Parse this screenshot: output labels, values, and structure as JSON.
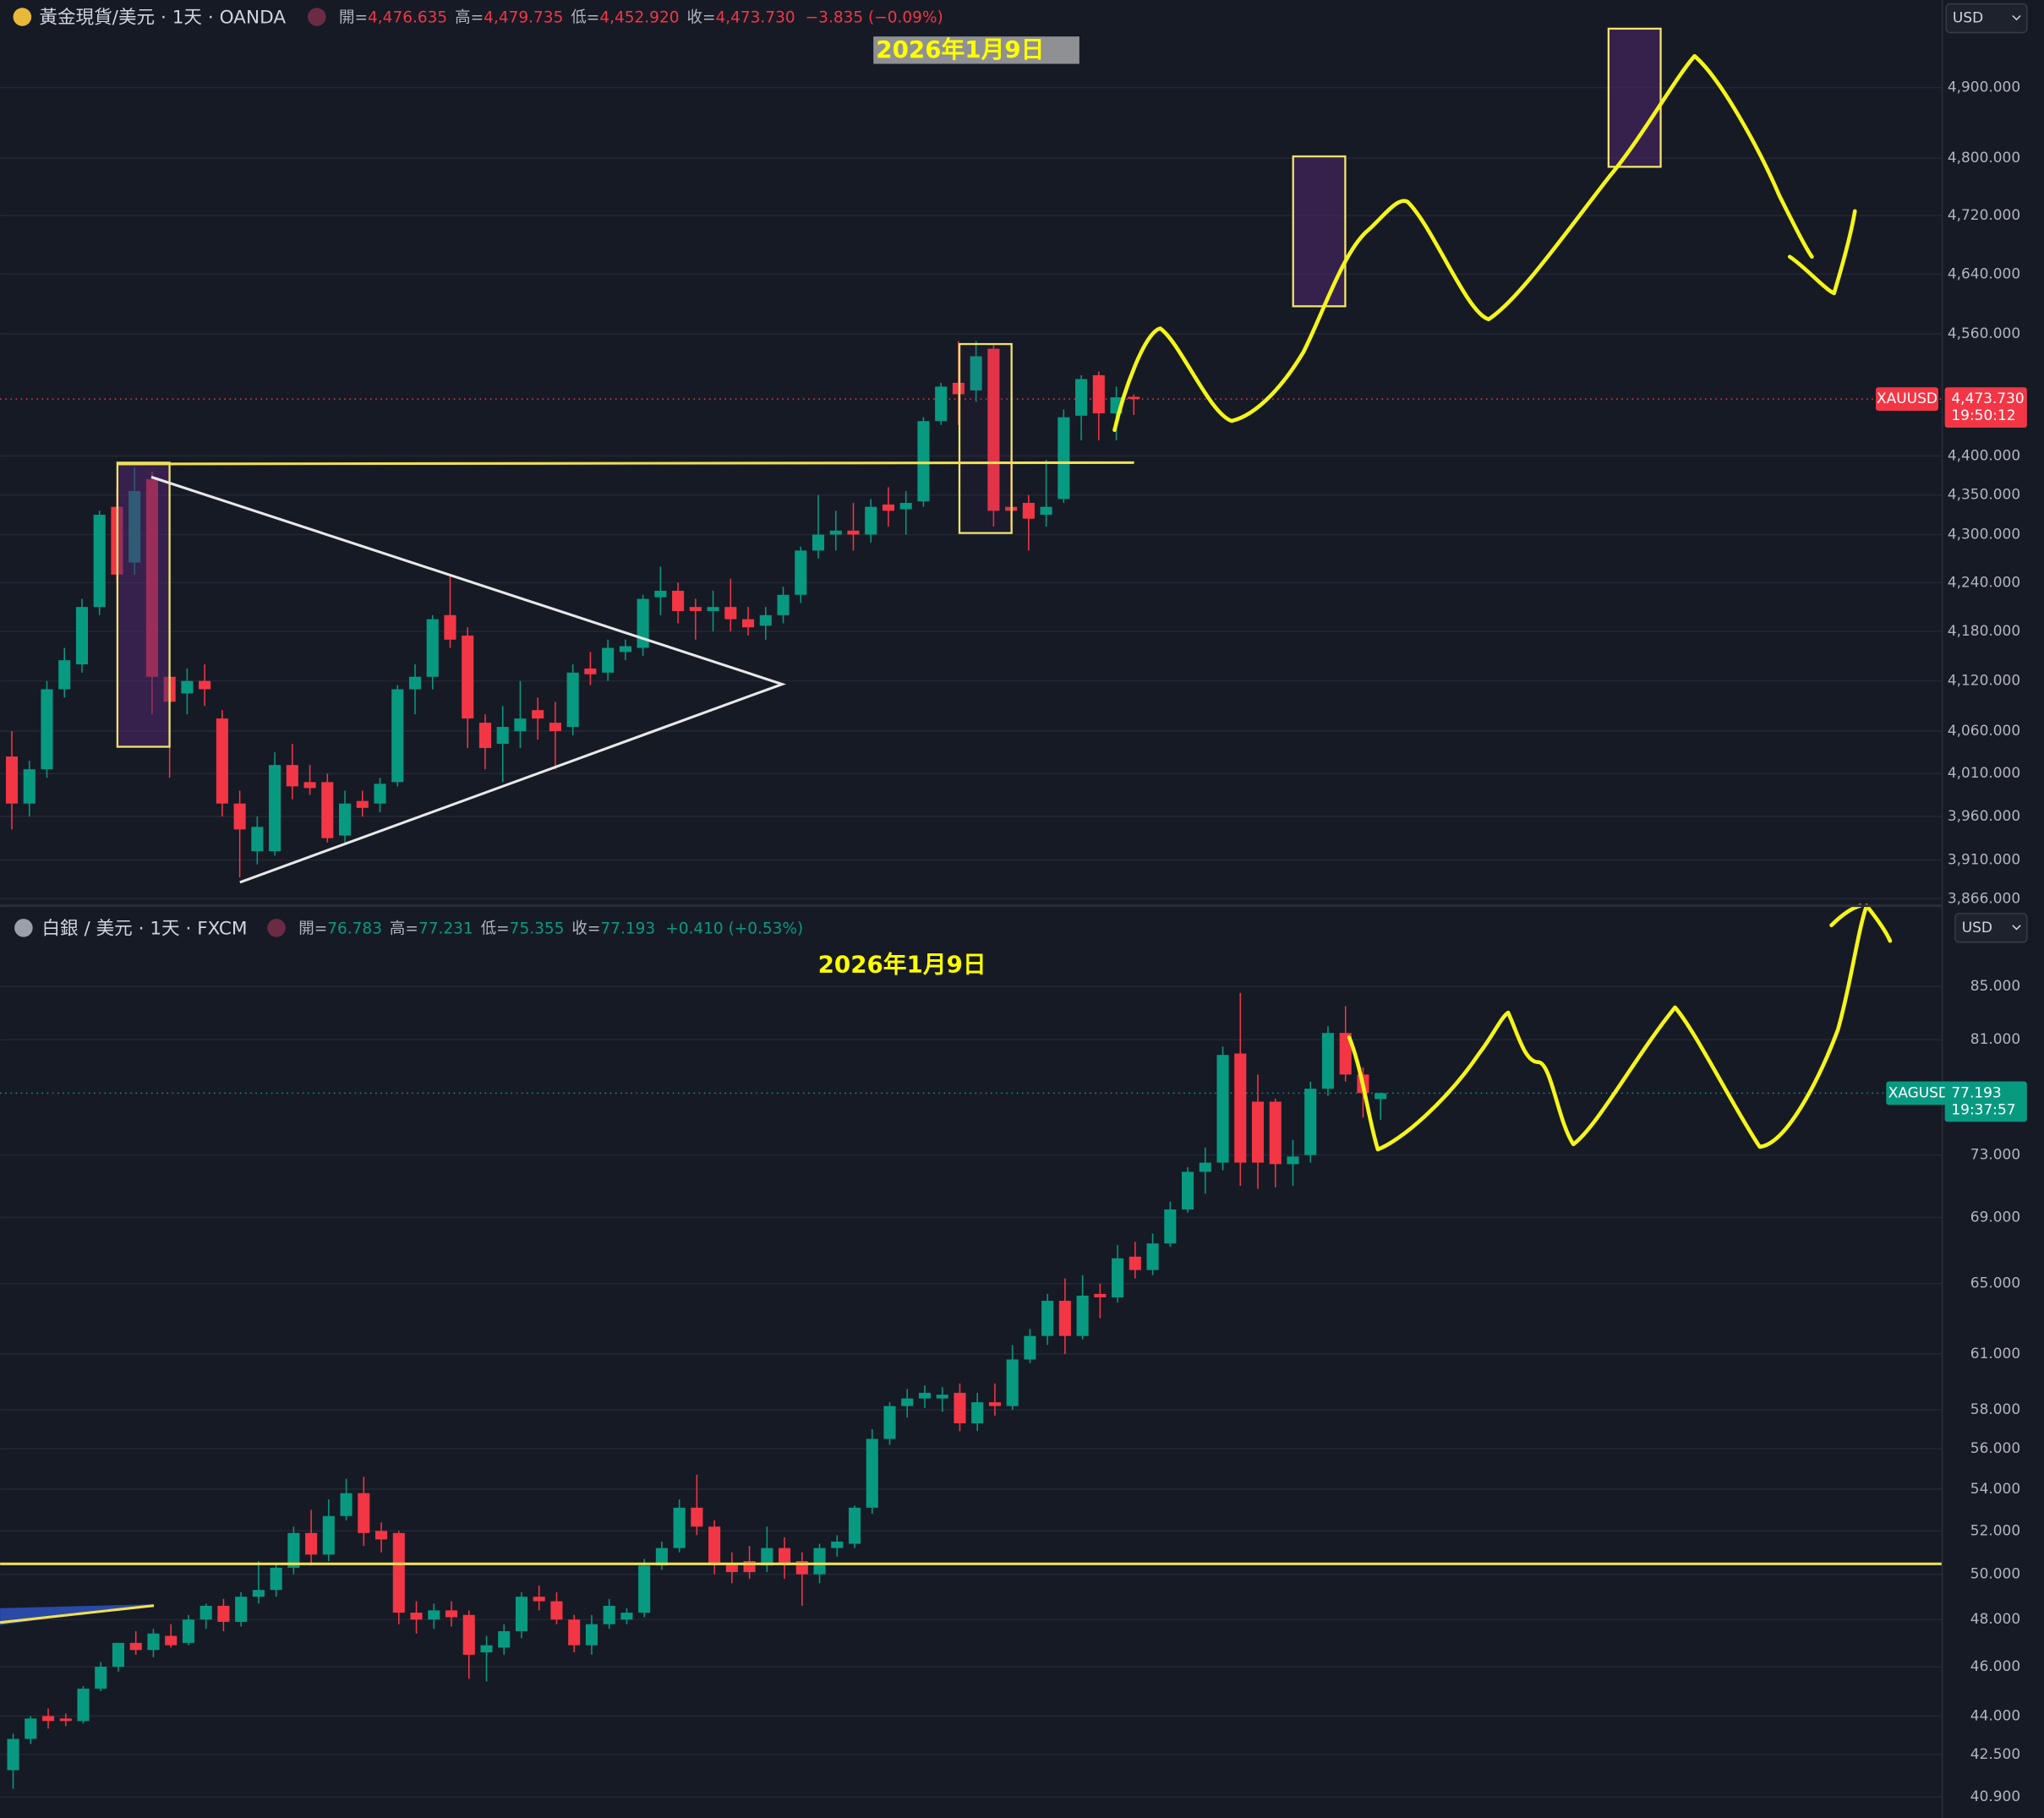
{
  "chart_data": [
    {
      "type": "candlestick",
      "symbol": "黃金現貨/美元 · 1天 · OANDA",
      "ohlc_text": [
        {
          "label": "開=",
          "value": "4,476.635"
        },
        {
          "label": "高=",
          "value": "4,479.735"
        },
        {
          "label": "低=",
          "value": "4,452.920"
        },
        {
          "label": "收=",
          "value": "4,473.730"
        }
      ],
      "change_text": "−3.835 (−0.09%)",
      "annotation": "2026年1月9日",
      "currency": "USD",
      "ticker": "XAUUSD",
      "last_label": "4,473.730",
      "countdown": "19:50:12",
      "log": true,
      "grid": true,
      "up_color": "#089981",
      "down_color": "#f23645",
      "ylim": [
        3861,
        5027
      ],
      "yticks": [
        {
          "value": 4900,
          "label": "4,900.000"
        },
        {
          "value": 4800,
          "label": "4,800.000"
        },
        {
          "value": 4720,
          "label": "4,720.000"
        },
        {
          "value": 4640,
          "label": "4,640.000"
        },
        {
          "value": 4560,
          "label": "4,560.000"
        },
        {
          "value": 4400,
          "label": "4,400.000"
        },
        {
          "value": 4350,
          "label": "4,350.000"
        },
        {
          "value": 4300,
          "label": "4,300.000"
        },
        {
          "value": 4240,
          "label": "4,240.000"
        },
        {
          "value": 4180,
          "label": "4,180.000"
        },
        {
          "value": 4120,
          "label": "4,120.000"
        },
        {
          "value": 4060,
          "label": "4,060.000"
        },
        {
          "value": 4010,
          "label": "4,010.000"
        },
        {
          "value": 3960,
          "label": "3,960.000"
        },
        {
          "value": 3910,
          "label": "3,910.000"
        },
        {
          "value": 3866,
          "label": "3,866.000"
        }
      ],
      "open": [
        4030,
        3975,
        4015,
        4110,
        4140,
        4210,
        4335,
        4265,
        4370,
        4125,
        4105,
        4120,
        4075,
        3975,
        3920,
        3920,
        4020,
        4000,
        4000,
        3938,
        3978,
        3975,
        4000,
        4110,
        4125,
        4200,
        4175,
        4070,
        4045,
        4060,
        4085,
        4070,
        4065,
        4135,
        4130,
        4155,
        4160,
        4222,
        4230,
        4210,
        4205,
        4210,
        4195,
        4187,
        4200,
        4225,
        4280,
        4300,
        4305,
        4300,
        4338,
        4332,
        4342,
        4445,
        4495,
        4485,
        4540,
        4335,
        4340,
        4325,
        4345,
        4452,
        4505,
        4455,
        4476.635
      ],
      "high": [
        4060,
        4025,
        4120,
        4160,
        4220,
        4330,
        4360,
        4385,
        4380,
        4140,
        4135,
        4140,
        4085,
        3990,
        3960,
        4035,
        4045,
        4020,
        4010,
        3990,
        3990,
        4005,
        4115,
        4140,
        4200,
        4250,
        4185,
        4080,
        4090,
        4120,
        4100,
        4095,
        4140,
        4155,
        4170,
        4170,
        4225,
        4260,
        4240,
        4220,
        4230,
        4245,
        4210,
        4210,
        4235,
        4285,
        4350,
        4330,
        4340,
        4345,
        4360,
        4355,
        4450,
        4495,
        4550,
        4550,
        4545,
        4400,
        4350,
        4395,
        4460,
        4505,
        4510,
        4490,
        4479.735
      ],
      "low": [
        3945,
        3960,
        4005,
        4100,
        4130,
        4200,
        4240,
        4250,
        4080,
        4005,
        4080,
        4090,
        3960,
        3890,
        3905,
        3915,
        3980,
        3985,
        3930,
        3930,
        3960,
        3965,
        3995,
        4080,
        4110,
        4160,
        4040,
        4015,
        4000,
        4040,
        4050,
        4015,
        4055,
        4115,
        4120,
        4145,
        4150,
        4200,
        4190,
        4170,
        4180,
        4180,
        4175,
        4170,
        4190,
        4215,
        4270,
        4280,
        4280,
        4290,
        4310,
        4300,
        4335,
        4440,
        4440,
        4470,
        4310,
        4310,
        4280,
        4310,
        4340,
        4420,
        4420,
        4420,
        4452.92
      ],
      "close": [
        3975,
        4015,
        4110,
        4145,
        4210,
        4325,
        4250,
        4355,
        4125,
        4095,
        4120,
        4110,
        3975,
        3945,
        3948,
        4020,
        3995,
        3993,
        3935,
        3975,
        3970,
        3998,
        4110,
        4125,
        4195,
        4170,
        4075,
        4040,
        4065,
        4075,
        4075,
        4060,
        4130,
        4128,
        4160,
        4162,
        4220,
        4230,
        4205,
        4205,
        4210,
        4195,
        4185,
        4200,
        4225,
        4280,
        4300,
        4305,
        4300,
        4335,
        4330,
        4340,
        4445,
        4490,
        4480,
        4530,
        4330,
        4330,
        4320,
        4335,
        4450,
        4500,
        4455,
        4476,
        4473.73
      ]
    },
    {
      "type": "candlestick",
      "symbol": "白銀 / 美元 · 1天 · FXCM",
      "ohlc_text": [
        {
          "label": "開=",
          "value": "76.783"
        },
        {
          "label": "高=",
          "value": "77.231"
        },
        {
          "label": "低=",
          "value": "75.355"
        },
        {
          "label": "收=",
          "value": "77.193"
        }
      ],
      "change_text": "+0.410 (+0.53%)",
      "annotation": "2026年1月9日",
      "currency": "USD",
      "ticker": "XAGUSD",
      "last_label": "77.193",
      "countdown": "19:37:57",
      "log": true,
      "grid": true,
      "up_color": "#089981",
      "down_color": "#f23645",
      "ylim": [
        40.13,
        91.2
      ],
      "yticks": [
        {
          "value": 85,
          "label": "85.000"
        },
        {
          "value": 81,
          "label": "81.000"
        },
        {
          "value": 73,
          "label": "73.000"
        },
        {
          "value": 69,
          "label": "69.000"
        },
        {
          "value": 65,
          "label": "65.000"
        },
        {
          "value": 61,
          "label": "61.000"
        },
        {
          "value": 58,
          "label": "58.000"
        },
        {
          "value": 56,
          "label": "56.000"
        },
        {
          "value": 54,
          "label": "54.000"
        },
        {
          "value": 52,
          "label": "52.000"
        },
        {
          "value": 50,
          "label": "50.000"
        },
        {
          "value": 48,
          "label": "48.000"
        },
        {
          "value": 46,
          "label": "46.000"
        },
        {
          "value": 44,
          "label": "44.000"
        },
        {
          "value": 42.5,
          "label": "42.500"
        },
        {
          "value": 40.9,
          "label": "40.900"
        }
      ],
      "open": [
        41.9,
        43.1,
        44.0,
        43.9,
        43.8,
        45.1,
        46.0,
        47.0,
        46.7,
        47.3,
        47.0,
        48.0,
        48.6,
        47.9,
        49.0,
        49.3,
        50.3,
        51.9,
        50.9,
        52.7,
        53.8,
        52.0,
        51.9,
        48.3,
        48.0,
        48.4,
        48.2,
        46.6,
        46.8,
        47.5,
        49.0,
        48.8,
        48.0,
        46.9,
        47.8,
        48.0,
        48.3,
        50.4,
        51.2,
        53.1,
        52.2,
        50.5,
        50.6,
        50.4,
        51.2,
        50.6,
        50.0,
        51.2,
        51.4,
        53.1,
        56.5,
        58.2,
        58.6,
        58.6,
        58.9,
        57.3,
        58.4,
        58.2,
        60.7,
        62.0,
        64.0,
        62.0,
        64.4,
        64.2,
        66.6,
        65.8,
        67.4,
        69.5,
        71.9,
        72.5,
        80.0,
        76.6,
        76.6,
        72.4,
        73.0,
        77.5,
        81.5,
        78.5,
        76.783
      ],
      "high": [
        43.3,
        44.0,
        44.3,
        44.1,
        45.2,
        46.2,
        47.0,
        47.5,
        47.6,
        47.8,
        48.2,
        48.7,
        48.9,
        49.2,
        50.6,
        50.5,
        52.2,
        53.0,
        53.5,
        54.5,
        54.6,
        52.4,
        52.0,
        48.8,
        48.7,
        48.8,
        48.4,
        47.3,
        47.8,
        49.2,
        49.5,
        49.2,
        48.2,
        48.2,
        48.9,
        48.5,
        50.7,
        51.5,
        53.5,
        54.7,
        52.5,
        51.0,
        51.3,
        52.2,
        51.7,
        51.0,
        51.4,
        51.8,
        53.2,
        57.0,
        58.4,
        59.1,
        59.3,
        59.2,
        59.4,
        58.9,
        59.4,
        61.5,
        62.4,
        64.4,
        65.3,
        65.5,
        65.0,
        67.3,
        67.5,
        68.0,
        70.0,
        72.2,
        73.5,
        80.5,
        84.5,
        78.5,
        76.8,
        74.0,
        78.0,
        82.0,
        83.5,
        79.0,
        77.231
      ],
      "low": [
        41.2,
        42.9,
        43.5,
        43.6,
        43.7,
        45.0,
        45.8,
        46.5,
        46.4,
        46.8,
        46.9,
        47.6,
        47.5,
        47.7,
        48.7,
        49.0,
        50.0,
        50.4,
        50.6,
        52.5,
        51.3,
        51.0,
        47.8,
        47.4,
        47.6,
        47.7,
        45.5,
        45.4,
        46.5,
        47.2,
        48.4,
        47.8,
        46.6,
        46.5,
        47.6,
        47.8,
        48.1,
        50.2,
        51.0,
        51.8,
        50.0,
        49.6,
        49.8,
        50.1,
        49.8,
        48.6,
        49.6,
        50.8,
        51.2,
        52.8,
        56.2,
        57.6,
        58.1,
        57.9,
        56.9,
        56.9,
        57.7,
        58.0,
        60.5,
        61.5,
        61.0,
        61.8,
        63.0,
        63.9,
        65.3,
        65.5,
        67.2,
        69.3,
        70.5,
        72.0,
        71.0,
        70.8,
        70.9,
        71.0,
        72.5,
        77.0,
        78.0,
        75.5,
        75.355
      ],
      "close": [
        43.1,
        43.9,
        43.8,
        43.8,
        45.1,
        46.0,
        47.0,
        46.7,
        47.4,
        46.9,
        48.0,
        48.6,
        47.9,
        49.0,
        49.3,
        50.3,
        51.9,
        50.9,
        52.7,
        53.8,
        51.9,
        51.6,
        48.3,
        48.0,
        48.4,
        48.1,
        46.5,
        46.9,
        47.5,
        49.0,
        48.8,
        48.0,
        46.9,
        47.8,
        48.6,
        48.3,
        50.4,
        51.2,
        53.1,
        52.2,
        50.5,
        50.1,
        50.1,
        51.2,
        50.5,
        50.0,
        51.2,
        51.5,
        53.1,
        56.5,
        58.2,
        58.6,
        58.9,
        58.8,
        57.3,
        58.4,
        58.2,
        60.7,
        62.0,
        64.0,
        62.0,
        64.3,
        64.2,
        66.5,
        65.8,
        67.4,
        69.5,
        71.9,
        72.5,
        79.9,
        72.5,
        72.5,
        72.4,
        72.9,
        77.5,
        81.5,
        78.5,
        77.2,
        77.193
      ]
    }
  ]
}
